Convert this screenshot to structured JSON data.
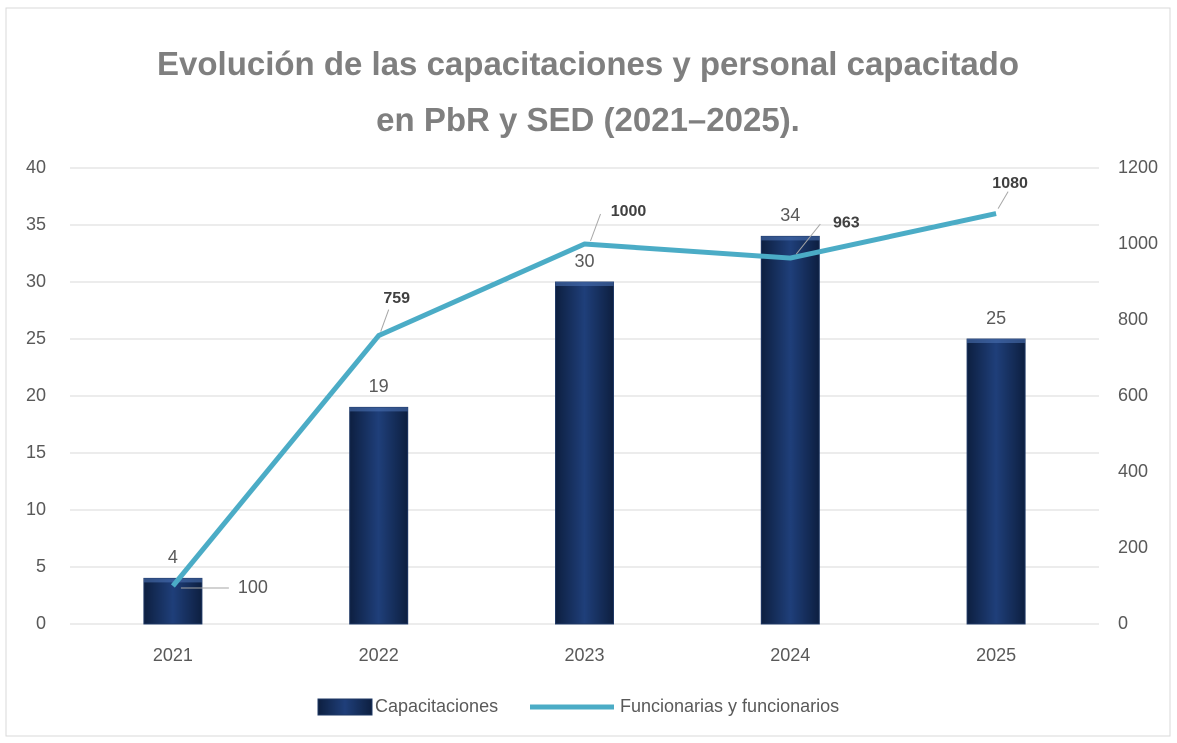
{
  "chart_data": {
    "type": "bar-line",
    "title": "Evolución de las capacitaciones y personal capacitado en PbR y SED (2021–2025).",
    "categories": [
      "2021",
      "2022",
      "2023",
      "2024",
      "2025"
    ],
    "series": [
      {
        "name": "Capacitaciones",
        "type": "bar",
        "color": "#1f3864",
        "values": [
          4,
          19,
          30,
          34,
          25
        ]
      },
      {
        "name": "Funcionarias y funcionarios",
        "type": "line",
        "color": "#4bacc6",
        "axis": "y2",
        "values": [
          100,
          759,
          1000,
          963,
          1080
        ]
      }
    ],
    "ylim": [
      0,
      40
    ],
    "yticks": [
      0,
      5,
      10,
      15,
      20,
      25,
      30,
      35,
      40
    ],
    "y2lim": [
      0,
      1200
    ],
    "y2ticks": [
      0,
      200,
      400,
      600,
      800,
      1000,
      1200
    ],
    "grid": true,
    "legend": "bottom"
  }
}
